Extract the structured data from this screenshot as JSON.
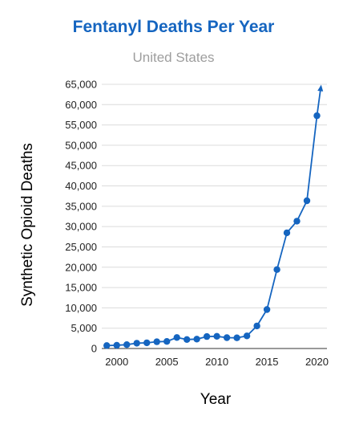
{
  "chart_data": {
    "type": "line",
    "title": "Fentanyl Deaths Per Year",
    "subtitle": "United States",
    "xlabel": "Year",
    "ylabel": "Synthetic Opioid Deaths",
    "x": [
      1999,
      2000,
      2001,
      2002,
      2003,
      2004,
      2005,
      2006,
      2007,
      2008,
      2009,
      2010,
      2011,
      2012,
      2013,
      2014,
      2015,
      2016,
      2017,
      2018,
      2019,
      2020
    ],
    "series": [
      {
        "values": [
          730,
          782,
          957,
          1295,
          1400,
          1664,
          1742,
          2707,
          2213,
          2306,
          2946,
          3007,
          2666,
          2628,
          3105,
          5544,
          9580,
          19413,
          28466,
          31335,
          36359,
          57279
        ],
        "color": "#1565c0"
      }
    ],
    "latest_extension": {
      "year": 2020.4,
      "value": 64500
    },
    "xticks": [
      2000,
      2005,
      2010,
      2015,
      2020
    ],
    "yticks": [
      0,
      5000,
      10000,
      15000,
      20000,
      25000,
      30000,
      35000,
      40000,
      45000,
      50000,
      55000,
      60000,
      65000
    ],
    "ytick_labels": [
      "0",
      "5,000",
      "10,000",
      "15,000",
      "20,000",
      "25,000",
      "30,000",
      "35,000",
      "40,000",
      "45,000",
      "50,000",
      "55,000",
      "60,000",
      "65,000"
    ],
    "xlim": [
      1998.5,
      2021
    ],
    "ylim": [
      0,
      65000
    ],
    "grid": true,
    "legend": "none"
  }
}
